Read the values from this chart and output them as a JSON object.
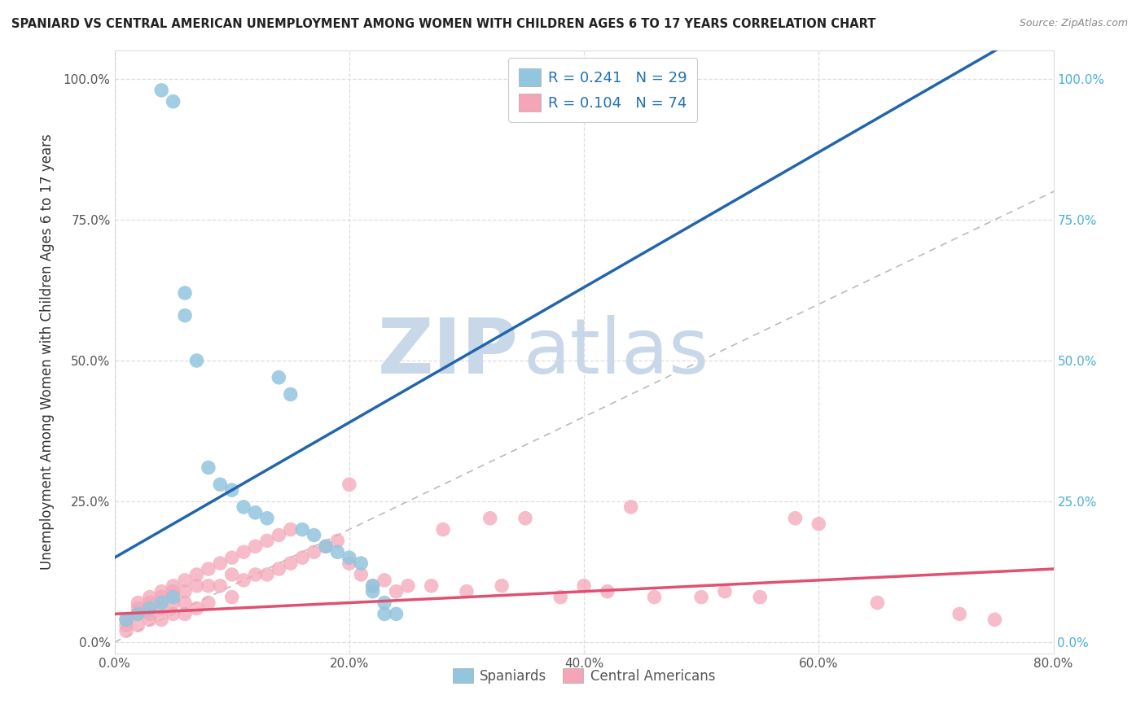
{
  "title": "SPANIARD VS CENTRAL AMERICAN UNEMPLOYMENT AMONG WOMEN WITH CHILDREN AGES 6 TO 17 YEARS CORRELATION CHART",
  "source": "Source: ZipAtlas.com",
  "ylabel": "Unemployment Among Women with Children Ages 6 to 17 years",
  "xlabel": "",
  "xlim": [
    0.0,
    0.8
  ],
  "ylim": [
    -0.02,
    1.05
  ],
  "xticks": [
    0.0,
    0.2,
    0.4,
    0.6,
    0.8
  ],
  "xtick_labels": [
    "0.0%",
    "20.0%",
    "40.0%",
    "60.0%",
    "80.0%"
  ],
  "yticks": [
    0.0,
    0.25,
    0.5,
    0.75,
    1.0
  ],
  "ytick_labels": [
    "0.0%",
    "25.0%",
    "50.0%",
    "75.0%",
    "100.0%"
  ],
  "spaniard_color": "#92c5de",
  "spaniard_edge_color": "#92c5de",
  "central_american_color": "#f4a6b8",
  "central_american_edge_color": "#f4a6b8",
  "spaniard_line_color": "#2166ac",
  "central_american_line_color": "#e05070",
  "spaniard_R": 0.241,
  "spaniard_N": 29,
  "central_american_R": 0.104,
  "central_american_N": 74,
  "legend_text_color": "#2171b5",
  "watermark_zip": "ZIP",
  "watermark_atlas": "atlas",
  "watermark_color": "#c8d8e8",
  "right_axis_color": "#4bafd6",
  "grid_color": "#dddddd",
  "spaniard_x": [
    0.04,
    0.05,
    0.01,
    0.02,
    0.03,
    0.04,
    0.05,
    0.06,
    0.06,
    0.07,
    0.08,
    0.09,
    0.1,
    0.11,
    0.12,
    0.13,
    0.14,
    0.15,
    0.16,
    0.17,
    0.18,
    0.19,
    0.2,
    0.21,
    0.22,
    0.22,
    0.23,
    0.23,
    0.24
  ],
  "spaniard_y": [
    0.98,
    0.96,
    0.04,
    0.05,
    0.06,
    0.07,
    0.08,
    0.62,
    0.58,
    0.5,
    0.31,
    0.28,
    0.27,
    0.24,
    0.23,
    0.22,
    0.47,
    0.44,
    0.2,
    0.19,
    0.17,
    0.16,
    0.15,
    0.14,
    0.1,
    0.09,
    0.07,
    0.05,
    0.05
  ],
  "central_american_x": [
    0.01,
    0.01,
    0.01,
    0.02,
    0.02,
    0.02,
    0.02,
    0.03,
    0.03,
    0.03,
    0.03,
    0.04,
    0.04,
    0.04,
    0.04,
    0.05,
    0.05,
    0.05,
    0.05,
    0.06,
    0.06,
    0.06,
    0.06,
    0.07,
    0.07,
    0.07,
    0.08,
    0.08,
    0.08,
    0.09,
    0.09,
    0.1,
    0.1,
    0.1,
    0.11,
    0.11,
    0.12,
    0.12,
    0.13,
    0.13,
    0.14,
    0.14,
    0.15,
    0.15,
    0.16,
    0.17,
    0.18,
    0.19,
    0.2,
    0.2,
    0.21,
    0.22,
    0.23,
    0.24,
    0.25,
    0.27,
    0.28,
    0.3,
    0.32,
    0.33,
    0.35,
    0.38,
    0.4,
    0.42,
    0.44,
    0.46,
    0.5,
    0.52,
    0.55,
    0.58,
    0.6,
    0.65,
    0.72,
    0.75
  ],
  "central_american_y": [
    0.04,
    0.03,
    0.02,
    0.07,
    0.06,
    0.05,
    0.03,
    0.08,
    0.07,
    0.05,
    0.04,
    0.09,
    0.08,
    0.06,
    0.04,
    0.1,
    0.09,
    0.07,
    0.05,
    0.11,
    0.09,
    0.07,
    0.05,
    0.12,
    0.1,
    0.06,
    0.13,
    0.1,
    0.07,
    0.14,
    0.1,
    0.15,
    0.12,
    0.08,
    0.16,
    0.11,
    0.17,
    0.12,
    0.18,
    0.12,
    0.19,
    0.13,
    0.2,
    0.14,
    0.15,
    0.16,
    0.17,
    0.18,
    0.28,
    0.14,
    0.12,
    0.1,
    0.11,
    0.09,
    0.1,
    0.1,
    0.2,
    0.09,
    0.22,
    0.1,
    0.22,
    0.08,
    0.1,
    0.09,
    0.24,
    0.08,
    0.08,
    0.09,
    0.08,
    0.22,
    0.21,
    0.07,
    0.05,
    0.04
  ]
}
